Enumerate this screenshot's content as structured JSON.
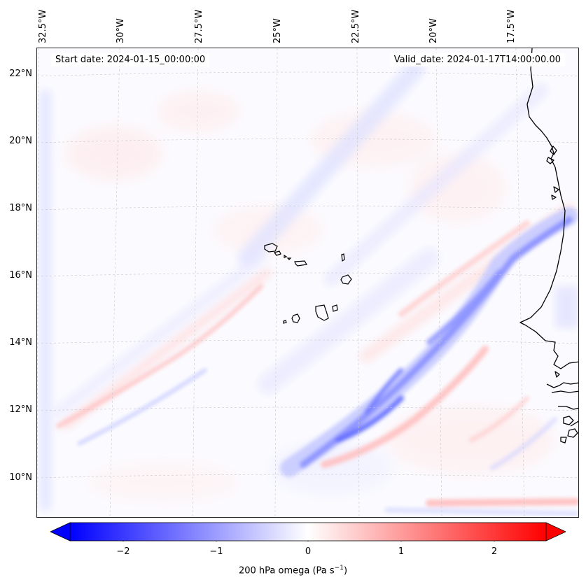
{
  "map": {
    "header_left": "Start date: 2024-01-15_00:00:00",
    "header_right": "Valid_date: 2024-01-17T14:00:00.00",
    "lon_labels": [
      "32.5°W",
      "30°W",
      "27.5°W",
      "25°W",
      "22.5°W",
      "20°W",
      "17.5°W"
    ],
    "lat_labels": [
      "22°N",
      "20°N",
      "18°N",
      "16°N",
      "14°N",
      "12°N",
      "10°N"
    ],
    "field_name": "200 hPa omega",
    "region": "Cape Verde islands and West African coast"
  },
  "colorbar": {
    "label": "200 hPa omega (Pa s",
    "label_sup": "−1",
    "label_close": ")",
    "ticks": [
      "−2",
      "−1",
      "0",
      "1",
      "2"
    ],
    "tick_values": [
      -2,
      -1,
      0,
      1,
      2
    ],
    "range": [
      -2.6,
      2.6
    ],
    "extend": "both",
    "cmap": "bwr",
    "colors": {
      "negative": "#0000ff",
      "zero": "#ffffff",
      "positive": "#ff0000"
    }
  }
}
